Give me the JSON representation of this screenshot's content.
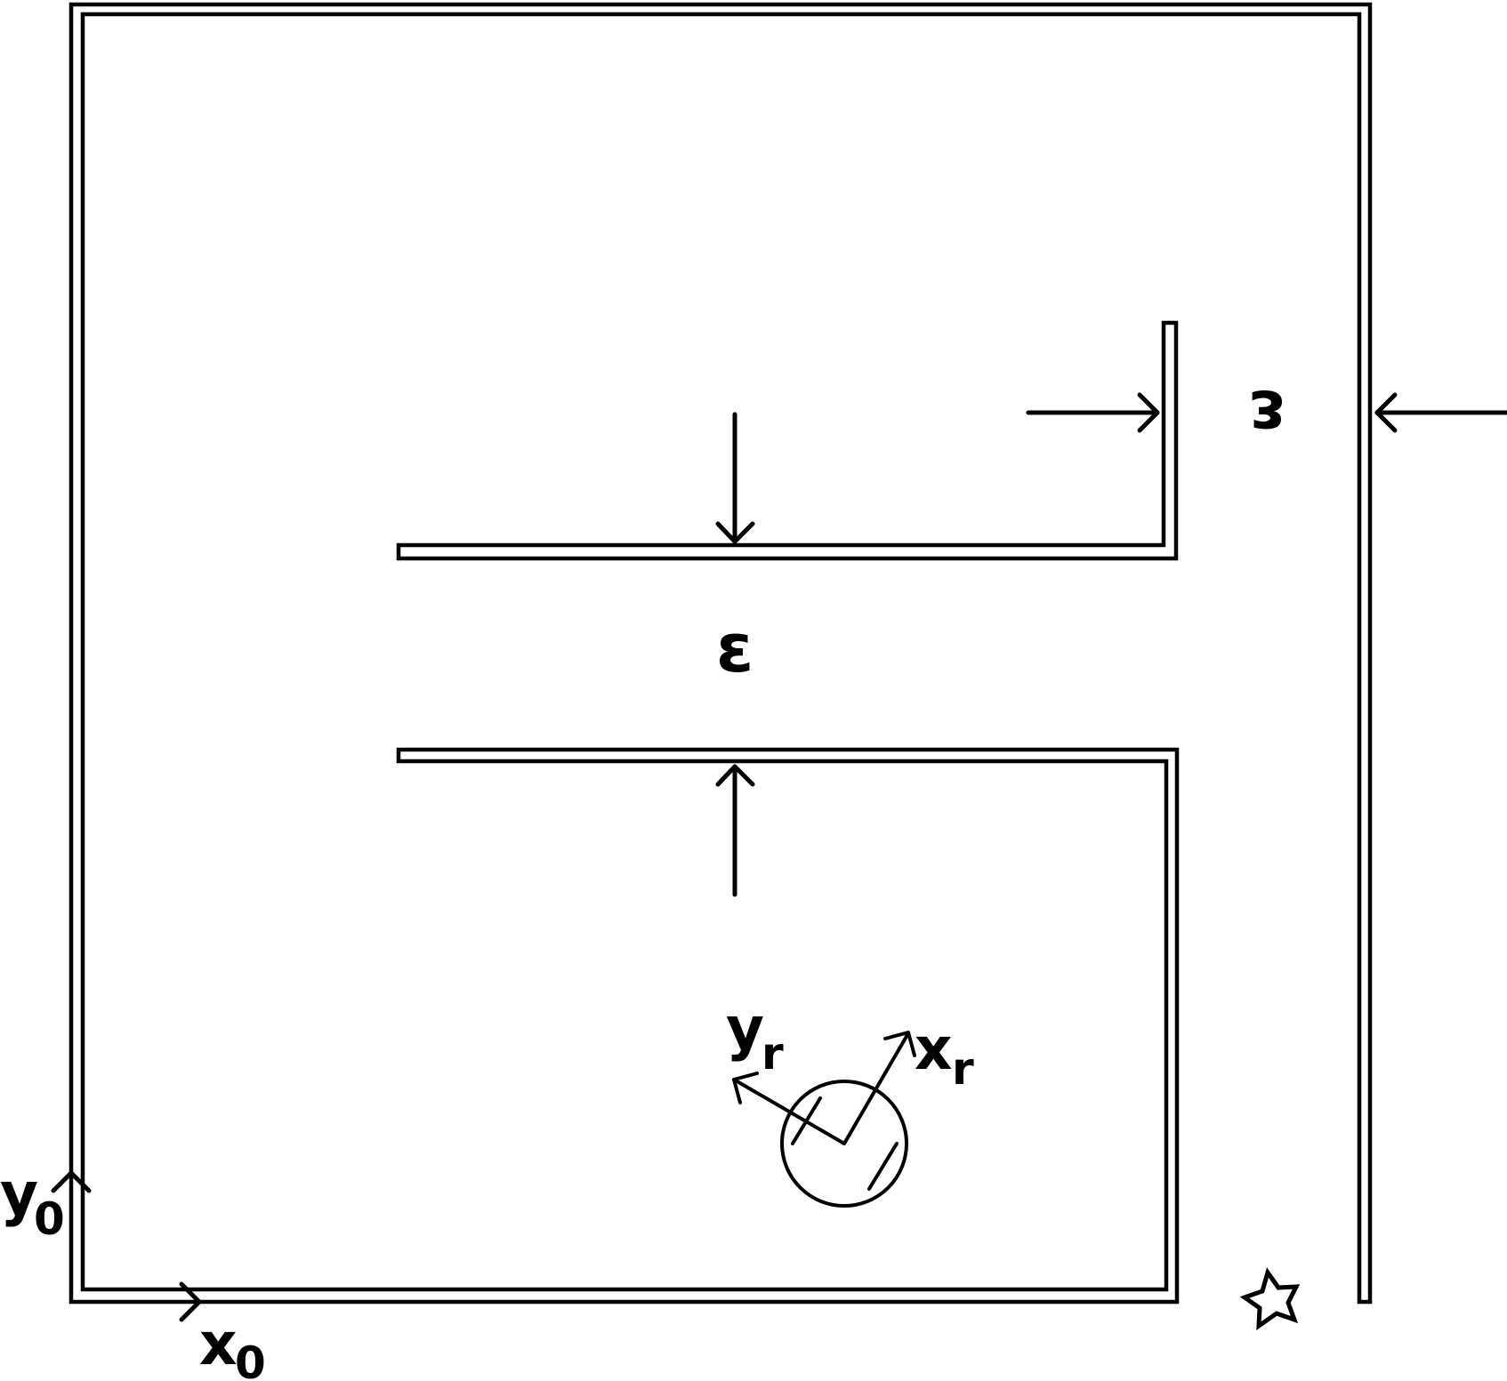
{
  "labels": {
    "epsilon_symbol": "ε",
    "world_x_main": "x",
    "world_x_sub": "0",
    "world_y_main": "y",
    "world_y_sub": "0",
    "robot_x_main": "x",
    "robot_x_sub": "r",
    "robot_y_main": "y",
    "robot_y_sub": "r"
  },
  "icons": {
    "goal": "star-icon",
    "robot": "circle-robot-icon"
  },
  "colors": {
    "stroke": "#000000",
    "background": "#ffffff"
  }
}
